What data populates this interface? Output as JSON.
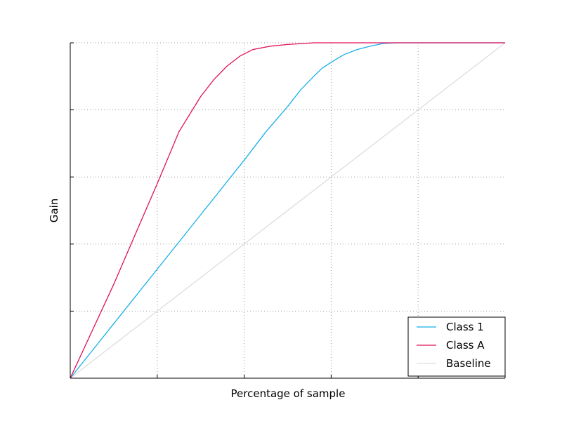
{
  "chart_data": {
    "type": "line",
    "title": "",
    "xlabel": "Percentage of sample",
    "ylabel": "Gain",
    "xlim": [
      0,
      1
    ],
    "ylim": [
      0,
      1
    ],
    "x_ticks": [
      0,
      0.2,
      0.4,
      0.6,
      0.8,
      1.0
    ],
    "y_ticks": [
      0,
      0.2,
      0.4,
      0.6,
      0.8,
      1.0
    ],
    "grid": true,
    "legend_position": "bottom-right",
    "colors": {
      "class1": "#1aaee8",
      "classA": "#e0105a",
      "baseline": "#dddddd"
    },
    "series": [
      {
        "name": "Class 1",
        "color": "#1aaee8",
        "points": [
          [
            0,
            0
          ],
          [
            0.1,
            0.1625
          ],
          [
            0.2,
            0.325
          ],
          [
            0.3,
            0.4875
          ],
          [
            0.4,
            0.65
          ],
          [
            0.45,
            0.735
          ],
          [
            0.5,
            0.81
          ],
          [
            0.53,
            0.86
          ],
          [
            0.56,
            0.9
          ],
          [
            0.58,
            0.925
          ],
          [
            0.61,
            0.95
          ],
          [
            0.63,
            0.965
          ],
          [
            0.66,
            0.98
          ],
          [
            0.69,
            0.99
          ],
          [
            0.72,
            0.998
          ],
          [
            0.75,
            1.0
          ],
          [
            1.0,
            1.0
          ]
        ]
      },
      {
        "name": "Class A",
        "color": "#e0105a",
        "points": [
          [
            0,
            0
          ],
          [
            0.05,
            0.14
          ],
          [
            0.1,
            0.28
          ],
          [
            0.15,
            0.43
          ],
          [
            0.2,
            0.58
          ],
          [
            0.25,
            0.735
          ],
          [
            0.3,
            0.84
          ],
          [
            0.33,
            0.89
          ],
          [
            0.36,
            0.93
          ],
          [
            0.39,
            0.96
          ],
          [
            0.42,
            0.98
          ],
          [
            0.46,
            0.99
          ],
          [
            0.5,
            0.995
          ],
          [
            0.56,
            1.0
          ],
          [
            1.0,
            1.0
          ]
        ]
      },
      {
        "name": "Baseline",
        "color": "#dddddd",
        "points": [
          [
            0,
            0
          ],
          [
            1,
            1
          ]
        ]
      }
    ]
  }
}
